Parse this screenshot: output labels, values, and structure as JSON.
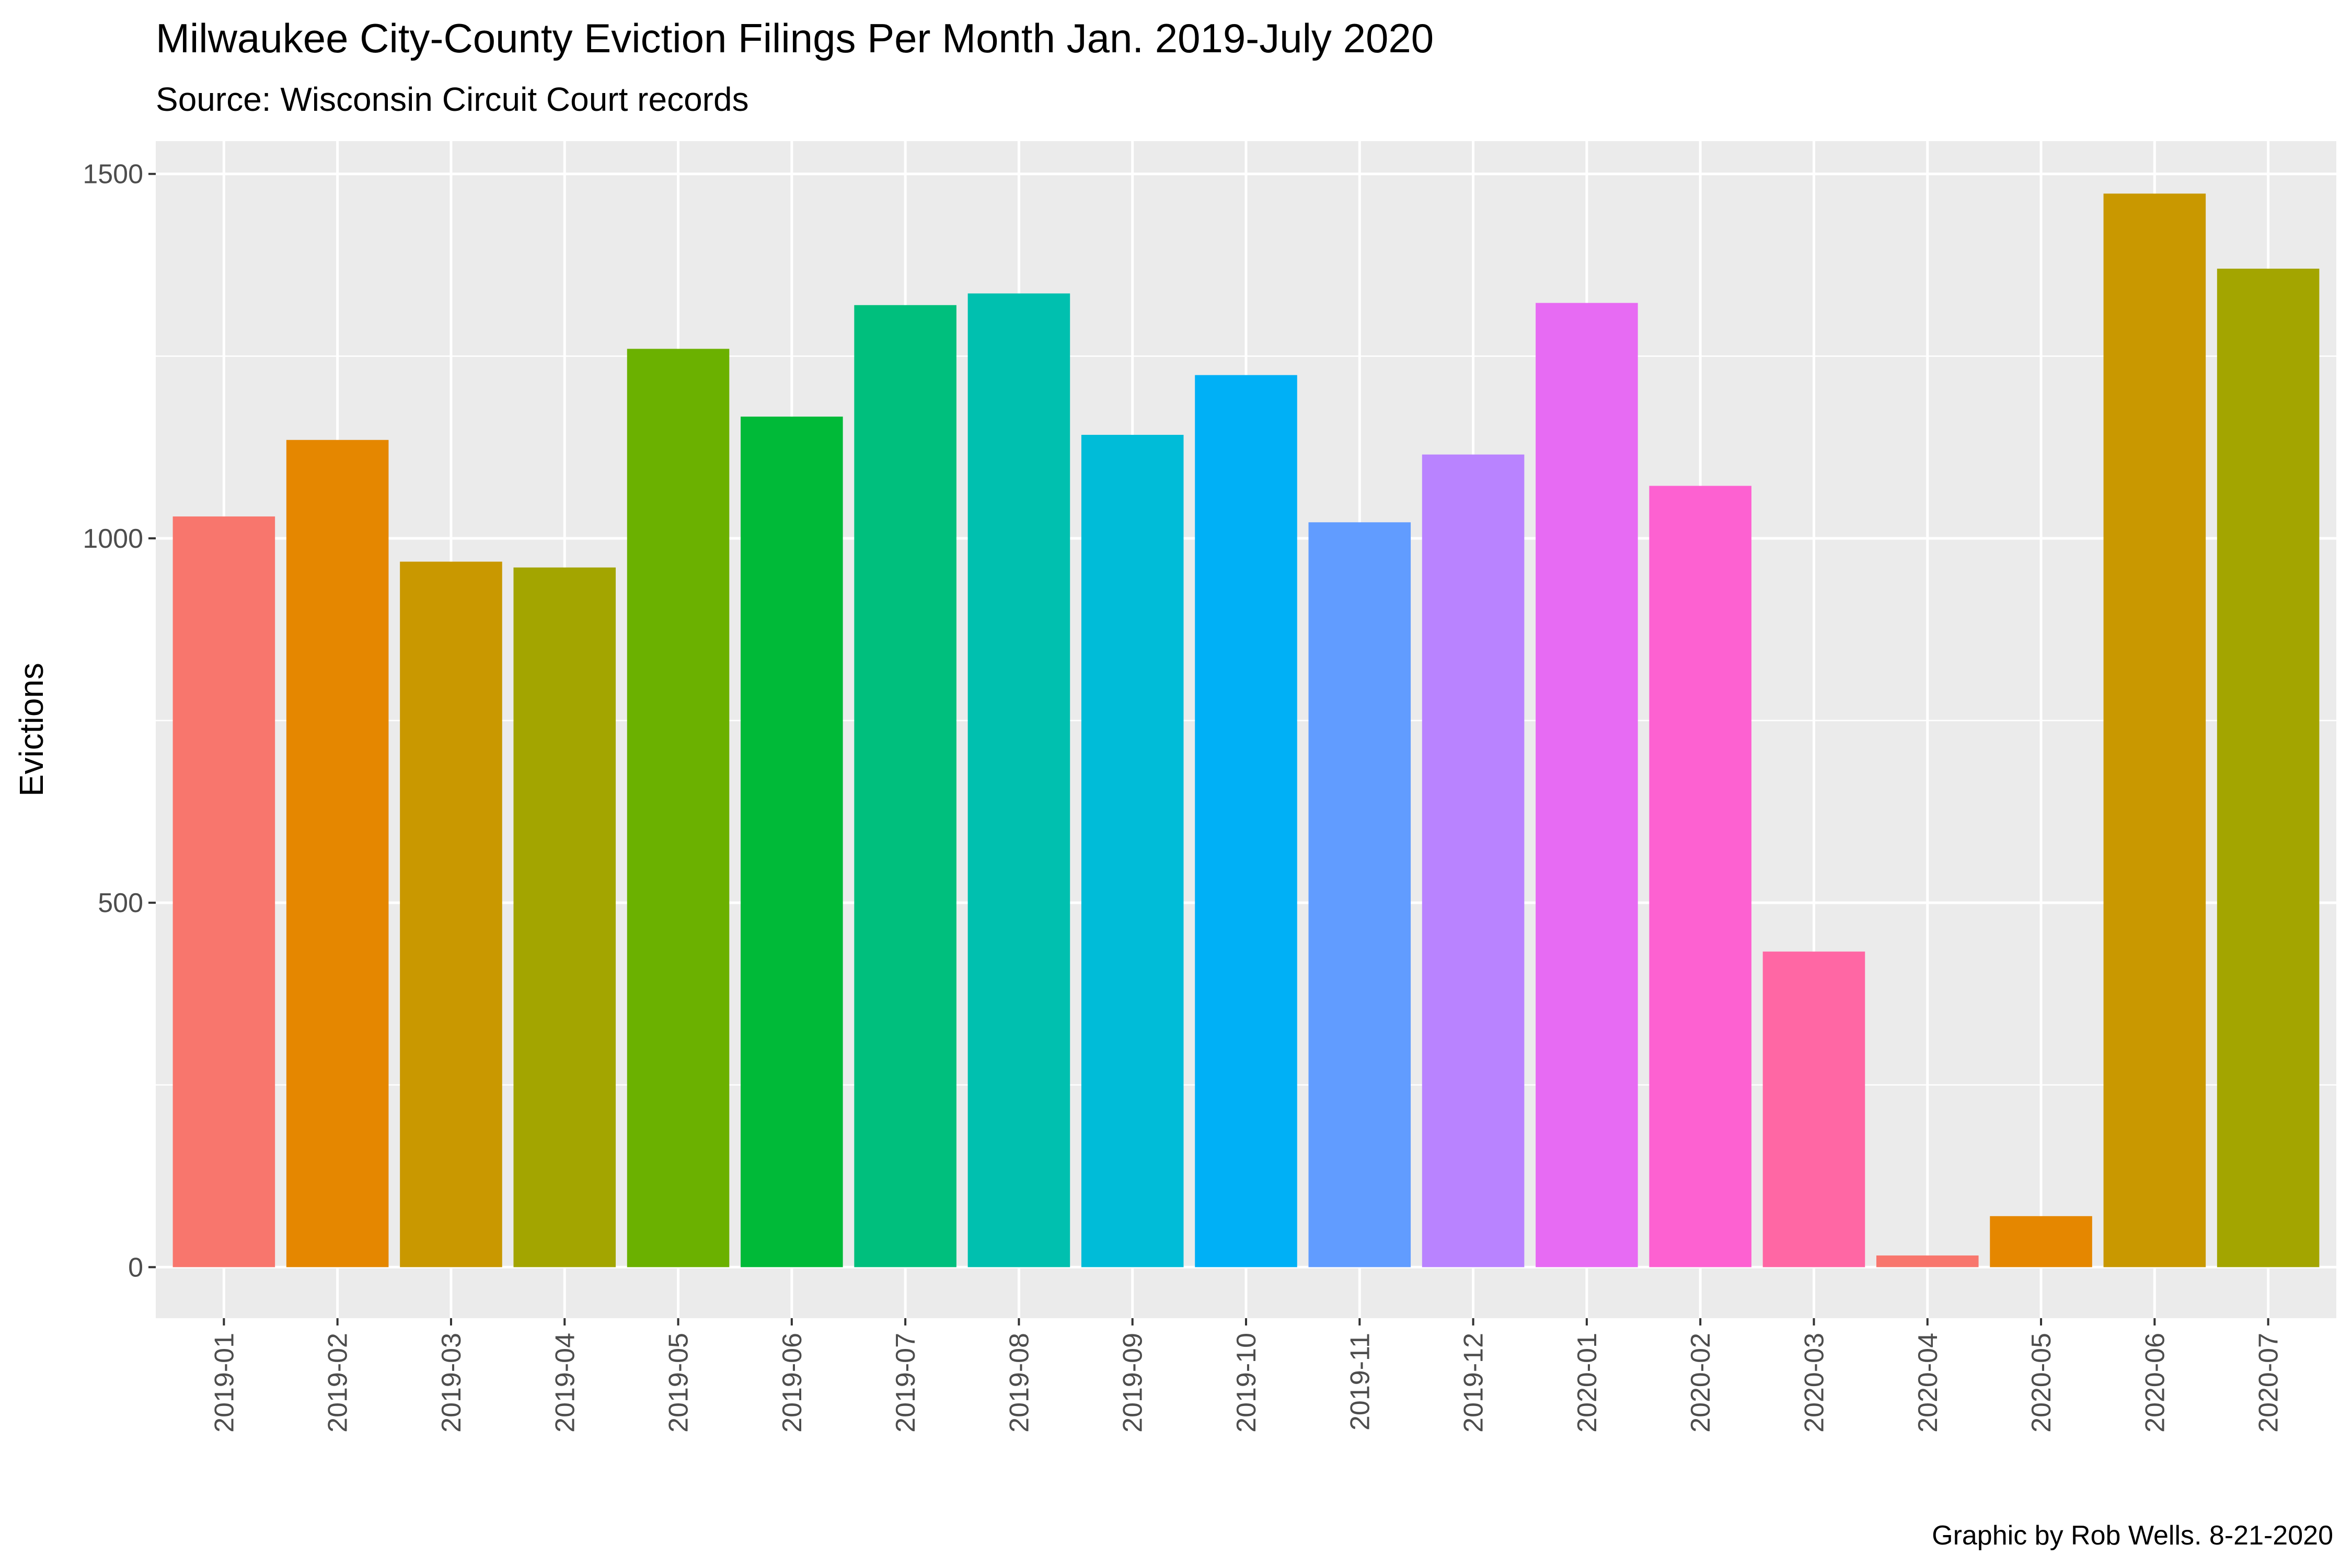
{
  "chart_data": {
    "type": "bar",
    "title": "Milwaukee City-County Eviction Filings Per Month Jan. 2019-July 2020",
    "subtitle": "Source: Wisconsin Circuit Court records",
    "xlabel": "",
    "ylabel": "Evictions",
    "caption": "Graphic by Rob Wells. 8-21-2020",
    "categories": [
      "2019-01",
      "2019-02",
      "2019-03",
      "2019-04",
      "2019-05",
      "2019-06",
      "2019-07",
      "2019-08",
      "2019-09",
      "2019-10",
      "2019-11",
      "2019-12",
      "2020-01",
      "2020-02",
      "2020-03",
      "2020-04",
      "2020-05",
      "2020-06",
      "2020-07"
    ],
    "values": [
      1030,
      1135,
      968,
      960,
      1260,
      1167,
      1320,
      1336,
      1142,
      1224,
      1022,
      1115,
      1323,
      1072,
      433,
      16,
      70,
      1473,
      1370
    ],
    "colors": [
      "#F8766D",
      "#E58700",
      "#C99800",
      "#A3A500",
      "#6BB100",
      "#00BA38",
      "#00BF7D",
      "#00C0AF",
      "#00BCD8",
      "#00B0F6",
      "#619CFF",
      "#B983FF",
      "#E76BF3",
      "#FD61D1",
      "#FF67A4",
      "#F8766D",
      "#E58700",
      "#C99800",
      "#A3A500"
    ],
    "ylim": [
      -70,
      1545
    ],
    "yticks": [
      0,
      500,
      1000,
      1500
    ],
    "grid": true,
    "legend": "none",
    "panel_background": "#EBEBEB"
  }
}
